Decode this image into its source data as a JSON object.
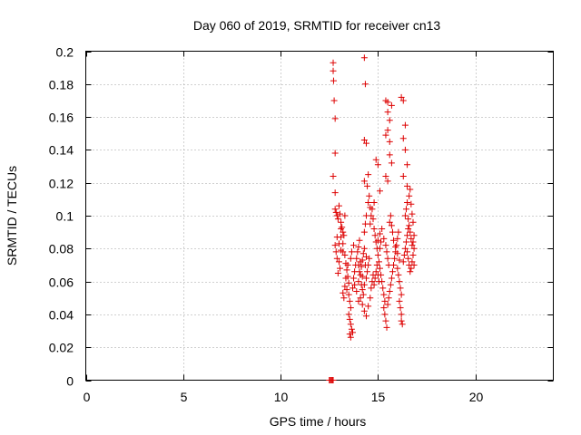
{
  "chart_data": {
    "type": "scatter",
    "title": "Day 060 of 2019, SRMTID for receiver cn13",
    "xlabel": "GPS time / hours",
    "ylabel": "SRMTID / TECUs",
    "xlim": [
      0,
      24
    ],
    "ylim": [
      0,
      0.2
    ],
    "xticks": [
      "0",
      "5",
      "10",
      "15",
      "20"
    ],
    "xtick_values": [
      0,
      5,
      10,
      15,
      20
    ],
    "yticks": [
      "0",
      "0.02",
      "0.04",
      "0.06",
      "0.08",
      "0.1",
      "0.12",
      "0.14",
      "0.16",
      "0.18",
      "0.2"
    ],
    "ytick_values": [
      0,
      0.02,
      0.04,
      0.06,
      0.08,
      0.1,
      0.12,
      0.14,
      0.16,
      0.18,
      0.2
    ],
    "grid": true,
    "marker": "+",
    "color": "#dd0000",
    "series": [
      {
        "name": "cn13",
        "points": [
          [
            12.5,
            0.0
          ],
          [
            12.55,
            0.0
          ],
          [
            12.6,
            0.0
          ],
          [
            12.65,
            0.0
          ],
          [
            12.7,
            0.0
          ],
          [
            12.7,
            0.193
          ],
          [
            12.7,
            0.188
          ],
          [
            12.72,
            0.182
          ],
          [
            12.75,
            0.17
          ],
          [
            12.8,
            0.159
          ],
          [
            12.8,
            0.138
          ],
          [
            12.7,
            0.124
          ],
          [
            12.8,
            0.114
          ],
          [
            14.3,
            0.196
          ],
          [
            14.35,
            0.18
          ],
          [
            14.3,
            0.146
          ],
          [
            14.4,
            0.144
          ],
          [
            14.5,
            0.125
          ],
          [
            14.45,
            0.118
          ],
          [
            14.3,
            0.121
          ],
          [
            15.4,
            0.17
          ],
          [
            15.5,
            0.169
          ],
          [
            15.5,
            0.163
          ],
          [
            15.6,
            0.158
          ],
          [
            15.5,
            0.152
          ],
          [
            15.4,
            0.149
          ],
          [
            15.6,
            0.145
          ],
          [
            15.7,
            0.167
          ],
          [
            16.2,
            0.172
          ],
          [
            16.3,
            0.17
          ],
          [
            16.4,
            0.155
          ],
          [
            16.3,
            0.147
          ],
          [
            16.4,
            0.14
          ],
          [
            16.5,
            0.131
          ],
          [
            16.3,
            0.124
          ],
          [
            16.5,
            0.118
          ],
          [
            15.6,
            0.137
          ],
          [
            15.7,
            0.132
          ],
          [
            15.4,
            0.124
          ],
          [
            15.5,
            0.121
          ],
          [
            14.9,
            0.134
          ],
          [
            15.0,
            0.131
          ],
          [
            15.1,
            0.115
          ],
          [
            14.8,
            0.108
          ],
          [
            12.8,
            0.104
          ],
          [
            12.85,
            0.102
          ],
          [
            12.9,
            0.1
          ],
          [
            12.95,
            0.098
          ],
          [
            13.0,
            0.106
          ],
          [
            13.05,
            0.101
          ],
          [
            13.1,
            0.096
          ],
          [
            13.15,
            0.093
          ],
          [
            13.2,
            0.09
          ],
          [
            13.25,
            0.088
          ],
          [
            13.3,
            0.1
          ],
          [
            13.1,
            0.092
          ],
          [
            12.9,
            0.087
          ],
          [
            12.8,
            0.082
          ],
          [
            12.85,
            0.078
          ],
          [
            12.9,
            0.074
          ],
          [
            13.0,
            0.072
          ],
          [
            13.05,
            0.068
          ],
          [
            12.95,
            0.065
          ],
          [
            13.1,
            0.079
          ],
          [
            13.2,
            0.083
          ],
          [
            13.3,
            0.076
          ],
          [
            13.35,
            0.071
          ],
          [
            13.4,
            0.067
          ],
          [
            13.45,
            0.063
          ],
          [
            13.5,
            0.059
          ],
          [
            13.3,
            0.057
          ],
          [
            13.2,
            0.053
          ],
          [
            13.25,
            0.05
          ],
          [
            13.4,
            0.055
          ],
          [
            13.5,
            0.052
          ],
          [
            13.55,
            0.048
          ],
          [
            13.6,
            0.044
          ],
          [
            13.5,
            0.04
          ],
          [
            13.55,
            0.037
          ],
          [
            13.6,
            0.034
          ],
          [
            13.65,
            0.031
          ],
          [
            13.55,
            0.028
          ],
          [
            13.6,
            0.026
          ],
          [
            13.7,
            0.029
          ],
          [
            13.7,
            0.056
          ],
          [
            13.75,
            0.062
          ],
          [
            13.8,
            0.066
          ],
          [
            13.85,
            0.07
          ],
          [
            13.9,
            0.074
          ],
          [
            13.95,
            0.078
          ],
          [
            14.0,
            0.081
          ],
          [
            14.05,
            0.085
          ],
          [
            13.8,
            0.058
          ],
          [
            13.9,
            0.054
          ],
          [
            14.0,
            0.06
          ],
          [
            14.1,
            0.064
          ],
          [
            14.15,
            0.069
          ],
          [
            14.2,
            0.073
          ],
          [
            14.25,
            0.077
          ],
          [
            14.3,
            0.08
          ],
          [
            14.0,
            0.048
          ],
          [
            14.1,
            0.05
          ],
          [
            14.2,
            0.055
          ],
          [
            14.3,
            0.058
          ],
          [
            14.4,
            0.062
          ],
          [
            14.45,
            0.066
          ],
          [
            14.5,
            0.07
          ],
          [
            14.55,
            0.074
          ],
          [
            14.2,
            0.046
          ],
          [
            14.3,
            0.042
          ],
          [
            14.4,
            0.039
          ],
          [
            14.5,
            0.045
          ],
          [
            14.6,
            0.05
          ],
          [
            14.65,
            0.056
          ],
          [
            14.7,
            0.06
          ],
          [
            14.75,
            0.064
          ],
          [
            14.6,
            0.095
          ],
          [
            14.65,
            0.1
          ],
          [
            14.7,
            0.104
          ],
          [
            14.75,
            0.098
          ],
          [
            14.8,
            0.092
          ],
          [
            14.85,
            0.088
          ],
          [
            14.9,
            0.084
          ],
          [
            14.95,
            0.08
          ],
          [
            14.5,
            0.108
          ],
          [
            14.55,
            0.112
          ],
          [
            14.6,
            0.105
          ],
          [
            14.4,
            0.1
          ],
          [
            14.35,
            0.095
          ],
          [
            14.3,
            0.09
          ],
          [
            15.0,
            0.076
          ],
          [
            15.05,
            0.072
          ],
          [
            15.1,
            0.068
          ],
          [
            15.15,
            0.064
          ],
          [
            15.2,
            0.06
          ],
          [
            15.25,
            0.056
          ],
          [
            15.3,
            0.052
          ],
          [
            15.35,
            0.048
          ],
          [
            15.0,
            0.085
          ],
          [
            15.1,
            0.089
          ],
          [
            15.2,
            0.092
          ],
          [
            15.3,
            0.086
          ],
          [
            15.4,
            0.082
          ],
          [
            15.45,
            0.078
          ],
          [
            15.5,
            0.074
          ],
          [
            15.55,
            0.07
          ],
          [
            15.3,
            0.044
          ],
          [
            15.35,
            0.04
          ],
          [
            15.4,
            0.036
          ],
          [
            15.45,
            0.032
          ],
          [
            15.5,
            0.046
          ],
          [
            15.55,
            0.05
          ],
          [
            15.6,
            0.054
          ],
          [
            15.65,
            0.058
          ],
          [
            15.7,
            0.062
          ],
          [
            15.75,
            0.066
          ],
          [
            15.8,
            0.07
          ],
          [
            15.85,
            0.074
          ],
          [
            15.9,
            0.078
          ],
          [
            15.95,
            0.082
          ],
          [
            16.0,
            0.086
          ],
          [
            16.05,
            0.09
          ],
          [
            15.6,
            0.096
          ],
          [
            15.65,
            0.1
          ],
          [
            15.7,
            0.094
          ],
          [
            15.75,
            0.09
          ],
          [
            15.8,
            0.085
          ],
          [
            15.9,
            0.081
          ],
          [
            16.0,
            0.077
          ],
          [
            16.1,
            0.073
          ],
          [
            16.0,
            0.068
          ],
          [
            16.05,
            0.064
          ],
          [
            16.1,
            0.06
          ],
          [
            16.15,
            0.056
          ],
          [
            16.2,
            0.052
          ],
          [
            16.1,
            0.048
          ],
          [
            16.15,
            0.044
          ],
          [
            16.2,
            0.04
          ],
          [
            16.2,
            0.036
          ],
          [
            16.25,
            0.034
          ],
          [
            16.3,
            0.072
          ],
          [
            16.35,
            0.076
          ],
          [
            16.4,
            0.08
          ],
          [
            16.45,
            0.084
          ],
          [
            16.5,
            0.088
          ],
          [
            16.55,
            0.092
          ],
          [
            16.4,
            0.1
          ],
          [
            16.45,
            0.104
          ],
          [
            16.5,
            0.108
          ],
          [
            16.55,
            0.098
          ],
          [
            16.6,
            0.094
          ],
          [
            16.65,
            0.09
          ],
          [
            16.7,
            0.086
          ],
          [
            16.75,
            0.082
          ],
          [
            16.5,
            0.078
          ],
          [
            16.55,
            0.074
          ],
          [
            16.6,
            0.07
          ],
          [
            16.65,
            0.066
          ],
          [
            16.7,
            0.068
          ],
          [
            16.75,
            0.072
          ],
          [
            16.8,
            0.076
          ],
          [
            16.85,
            0.08
          ],
          [
            16.6,
            0.112
          ],
          [
            16.65,
            0.116
          ],
          [
            16.7,
            0.107
          ],
          [
            16.75,
            0.101
          ],
          [
            16.8,
            0.096
          ],
          [
            16.85,
            0.088
          ],
          [
            16.8,
            0.084
          ],
          [
            16.85,
            0.07
          ],
          [
            13.0,
            0.083
          ],
          [
            13.1,
            0.087
          ],
          [
            13.2,
            0.078
          ],
          [
            13.35,
            0.062
          ],
          [
            13.45,
            0.07
          ],
          [
            13.6,
            0.074
          ],
          [
            13.65,
            0.078
          ],
          [
            13.75,
            0.082
          ],
          [
            14.0,
            0.07
          ],
          [
            14.05,
            0.066
          ],
          [
            14.1,
            0.072
          ],
          [
            14.15,
            0.058
          ],
          [
            14.2,
            0.063
          ],
          [
            14.25,
            0.052
          ],
          [
            14.35,
            0.07
          ],
          [
            14.4,
            0.075
          ],
          [
            14.8,
            0.058
          ],
          [
            14.85,
            0.062
          ],
          [
            14.9,
            0.066
          ],
          [
            14.95,
            0.07
          ],
          [
            15.0,
            0.064
          ],
          [
            15.05,
            0.06
          ],
          [
            15.1,
            0.08
          ],
          [
            15.15,
            0.084
          ]
        ]
      }
    ]
  }
}
